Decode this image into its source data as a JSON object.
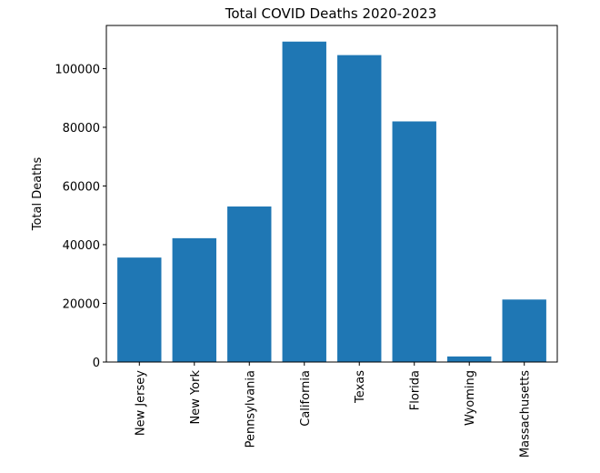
{
  "chart_data": {
    "type": "bar",
    "title": "Total COVID Deaths 2020-2023",
    "xlabel": "",
    "ylabel": "Total Deaths",
    "categories": [
      "New Jersey",
      "New York",
      "Pennsylvania",
      "California",
      "Texas",
      "Florida",
      "Wyoming",
      "Massachusetts"
    ],
    "values": [
      35600,
      42200,
      53000,
      109200,
      104600,
      82000,
      1900,
      21300
    ],
    "ylim": [
      0,
      114700
    ],
    "yticks": [
      0,
      20000,
      40000,
      60000,
      80000,
      100000
    ],
    "ytick_labels": [
      "0",
      "20000",
      "40000",
      "60000",
      "80000",
      "100000"
    ],
    "bar_color": "#1f77b4",
    "grid": false,
    "legend": "none"
  }
}
